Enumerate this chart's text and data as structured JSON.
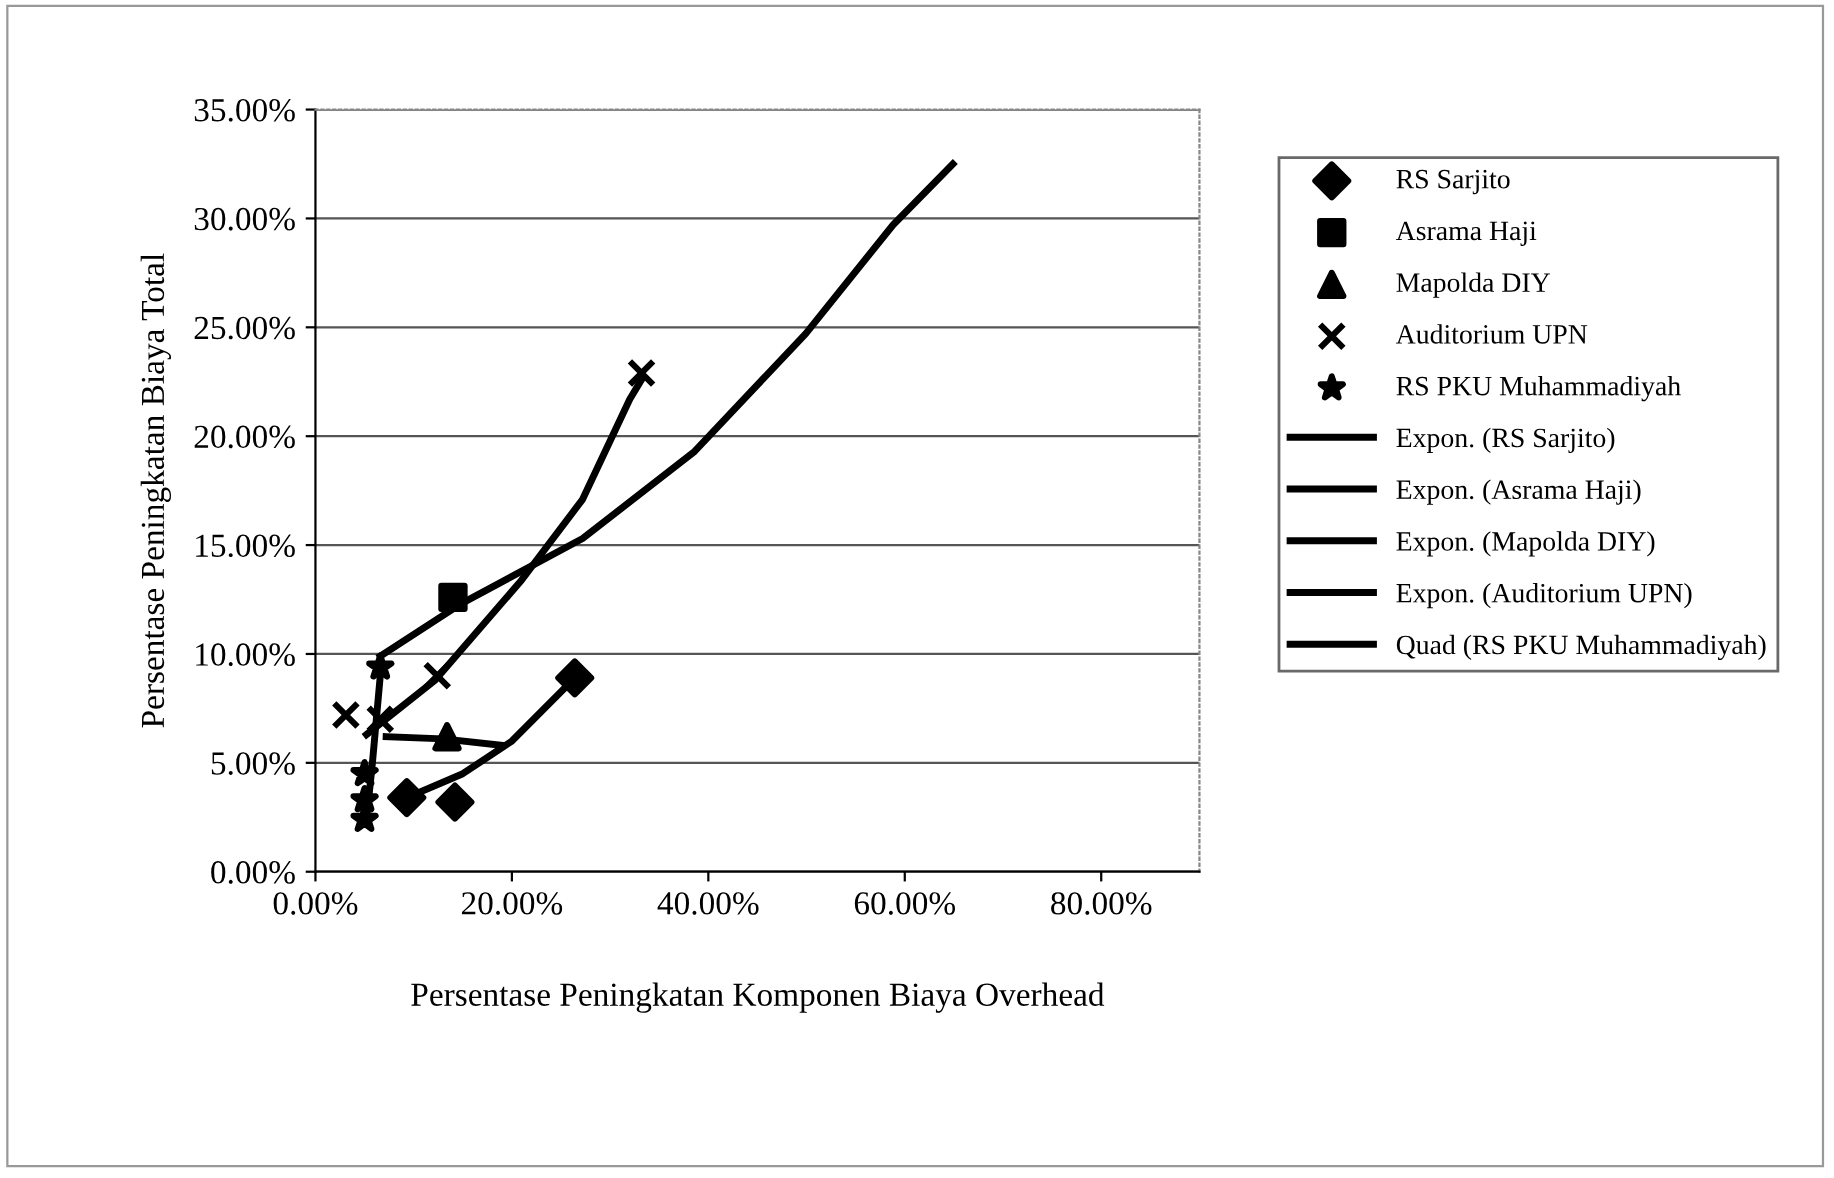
{
  "chart_data": {
    "type": "scatter",
    "xlabel": "Persentase Peningkatan Komponen Biaya Overhead",
    "ylabel": "Persentase Peningkatan Biaya Total",
    "xlim": [
      0,
      0.9
    ],
    "ylim": [
      0,
      0.35
    ],
    "xticks": [
      {
        "value": 0,
        "label": "0.00%"
      },
      {
        "value": 0.2,
        "label": "20.00%"
      },
      {
        "value": 0.4,
        "label": "40.00%"
      },
      {
        "value": 0.6,
        "label": "60.00%"
      },
      {
        "value": 0.8,
        "label": "80.00%"
      }
    ],
    "yticks": [
      {
        "value": 0,
        "label": "0.00%"
      },
      {
        "value": 0.05,
        "label": "5.00%"
      },
      {
        "value": 0.1,
        "label": "10.00%"
      },
      {
        "value": 0.15,
        "label": "15.00%"
      },
      {
        "value": 0.2,
        "label": "20.00%"
      },
      {
        "value": 0.25,
        "label": "25.00%"
      },
      {
        "value": 0.3,
        "label": "30.00%"
      },
      {
        "value": 0.35,
        "label": "35.00%"
      }
    ],
    "grid": "y",
    "legend": "right",
    "series": [
      {
        "name": "RS Sarjito",
        "marker": "diamond",
        "color": "#000000",
        "x": [
          0.093,
          0.142,
          0.264
        ],
        "values": [
          0.034,
          0.032,
          0.089
        ]
      },
      {
        "name": "Asrama Haji",
        "marker": "square",
        "color": "#000000",
        "x": [
          0.14
        ],
        "values": [
          0.126
        ]
      },
      {
        "name": "Mapolda DIY",
        "marker": "triangle",
        "color": "#000000",
        "x": [
          0.134
        ],
        "values": [
          0.062
        ]
      },
      {
        "name": "Auditorium UPN",
        "marker": "cross",
        "color": "#000000",
        "x": [
          0.031,
          0.066,
          0.124,
          0.332
        ],
        "values": [
          0.072,
          0.07,
          0.09,
          0.229
        ]
      },
      {
        "name": "RS PKU Muhammadiyah",
        "marker": "star",
        "color": "#000000",
        "x": [
          0.066,
          0.05,
          0.05,
          0.05
        ],
        "values": [
          0.094,
          0.045,
          0.033,
          0.024
        ]
      },
      {
        "name": "Expon. (RS Sarjito)",
        "type": "line",
        "marker": "none",
        "color": "#000000",
        "x": [
          0.093,
          0.15,
          0.2,
          0.264
        ],
        "values": [
          0.034,
          0.045,
          0.06,
          0.089
        ]
      },
      {
        "name": "Expon. (Asrama Haji)",
        "type": "line",
        "marker": "none",
        "color": "#000000",
        "x": [
          0.066,
          0.148,
          0.272,
          0.386,
          0.499,
          0.588,
          0.649
        ],
        "values": [
          0.099,
          0.123,
          0.153,
          0.193,
          0.247,
          0.297,
          0.325
        ]
      },
      {
        "name": "Expon. (Mapolda DIY)",
        "type": "line",
        "marker": "none",
        "color": "#000000",
        "x": [
          0.072,
          0.13,
          0.19
        ],
        "values": [
          0.062,
          0.061,
          0.058
        ]
      },
      {
        "name": "Expon. (Auditorium UPN)",
        "type": "line",
        "marker": "none",
        "color": "#000000",
        "x": [
          0.052,
          0.122,
          0.21,
          0.272,
          0.32,
          0.332
        ],
        "values": [
          0.063,
          0.088,
          0.134,
          0.171,
          0.217,
          0.226
        ]
      },
      {
        "name": "Quad (RS PKU Muhammadiyah)",
        "type": "line",
        "marker": "none",
        "color": "#000000",
        "x": [
          0.052,
          0.058,
          0.066
        ],
        "values": [
          0.024,
          0.05,
          0.09
        ]
      }
    ]
  }
}
